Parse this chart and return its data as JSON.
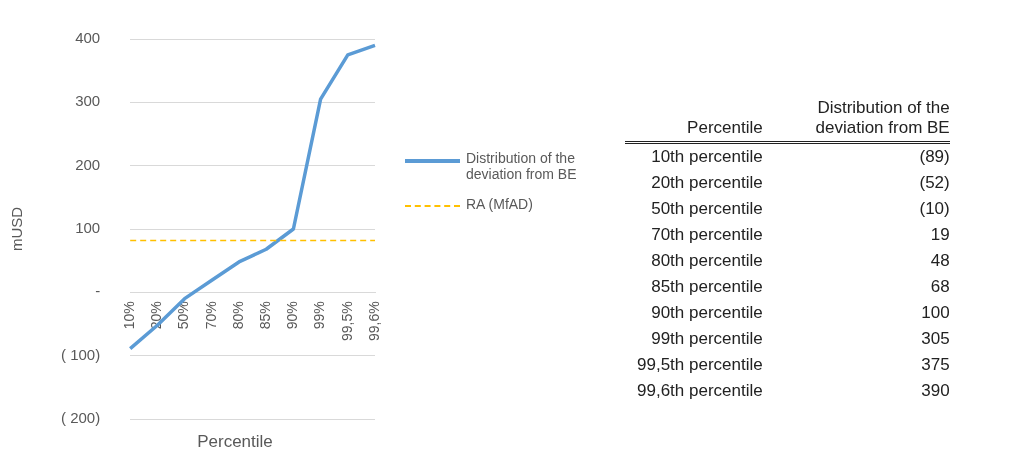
{
  "chart_data": {
    "type": "line",
    "xlabel": "Percentile",
    "ylabel": "mUSD",
    "categories": [
      "10%",
      "20%",
      "50%",
      "70%",
      "80%",
      "85%",
      "90%",
      "99%",
      "99,5%",
      "99,6%"
    ],
    "series": [
      {
        "name": "Distribution of the deviation from BE",
        "color": "#5b9bd5",
        "values": [
          -89,
          -52,
          -10,
          19,
          48,
          68,
          100,
          305,
          375,
          390
        ]
      }
    ],
    "ylim": [
      -200,
      400
    ],
    "yticks": [
      {
        "value": -200,
        "label": "( 200)"
      },
      {
        "value": -100,
        "label": "( 100)"
      },
      {
        "value": 0,
        "label": "-"
      },
      100,
      200,
      300,
      400
    ],
    "ref_lines": [
      {
        "axis": "y",
        "value": 82,
        "label": "RA (MfAD)",
        "color": "#ffc000",
        "line_style": "dashed"
      }
    ],
    "annotations": [
      "Percentile",
      "Distribution of the deviation from BE",
      "10th percentile",
      "(89)",
      "20th percentile",
      "(52)",
      "50th percentile",
      "(10)",
      "70th percentile",
      "19",
      "80th percentile",
      "48",
      "85th percentile",
      "68",
      "90th percentile",
      "100",
      "99th percentile",
      "305",
      "99,5th percentile",
      "375",
      "99,6th percentile",
      "390"
    ],
    "grid": "y",
    "legend": "right",
    "marker": "none",
    "line_style": "solid"
  }
}
